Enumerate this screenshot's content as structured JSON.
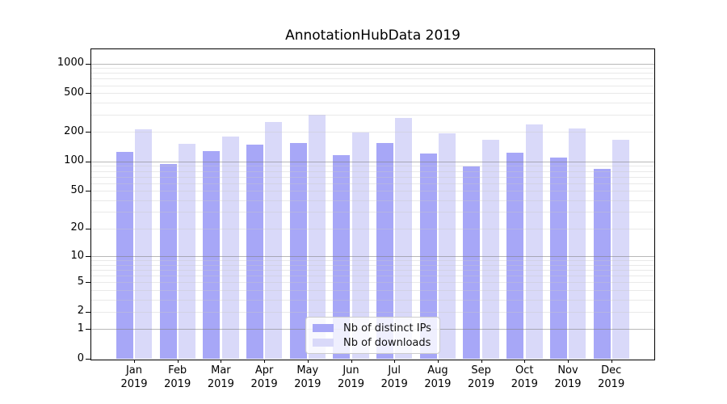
{
  "figure": {
    "background": "#ffffff",
    "axes_border_color": "#000000",
    "major_grid_color": "#9a9a9a",
    "minor_grid_color": "#e3e3e3"
  },
  "chart_data": {
    "type": "bar",
    "title": "AnnotationHubData 2019",
    "yscale": "log10(1+v)",
    "ylim": [
      0,
      1410
    ],
    "grid": "on",
    "legend_position": "inside-bottom-center",
    "categories": [
      "Jan",
      "Feb",
      "Mar",
      "Apr",
      "May",
      "Jun",
      "Jul",
      "Aug",
      "Sep",
      "Oct",
      "Nov",
      "Dec"
    ],
    "category_year": "2019",
    "ytick_labels": [
      "0",
      "1",
      "2",
      "5",
      "10",
      "20",
      "50",
      "100",
      "200",
      "500",
      "1000"
    ],
    "ytick_values": [
      0,
      1,
      2,
      5,
      10,
      20,
      50,
      100,
      200,
      500,
      1000
    ],
    "major_grid_values": [
      1,
      10,
      100,
      1000
    ],
    "series": [
      {
        "name": "Nb of distinct IPs",
        "color": "#a7a7f7",
        "values": [
          127,
          96,
          128,
          149,
          157,
          118,
          156,
          123,
          90,
          125,
          110,
          85
        ]
      },
      {
        "name": "Nb of downloads",
        "color": "#d9d9f9",
        "values": [
          217,
          154,
          181,
          255,
          305,
          200,
          283,
          197,
          167,
          240,
          220,
          170
        ]
      }
    ]
  }
}
